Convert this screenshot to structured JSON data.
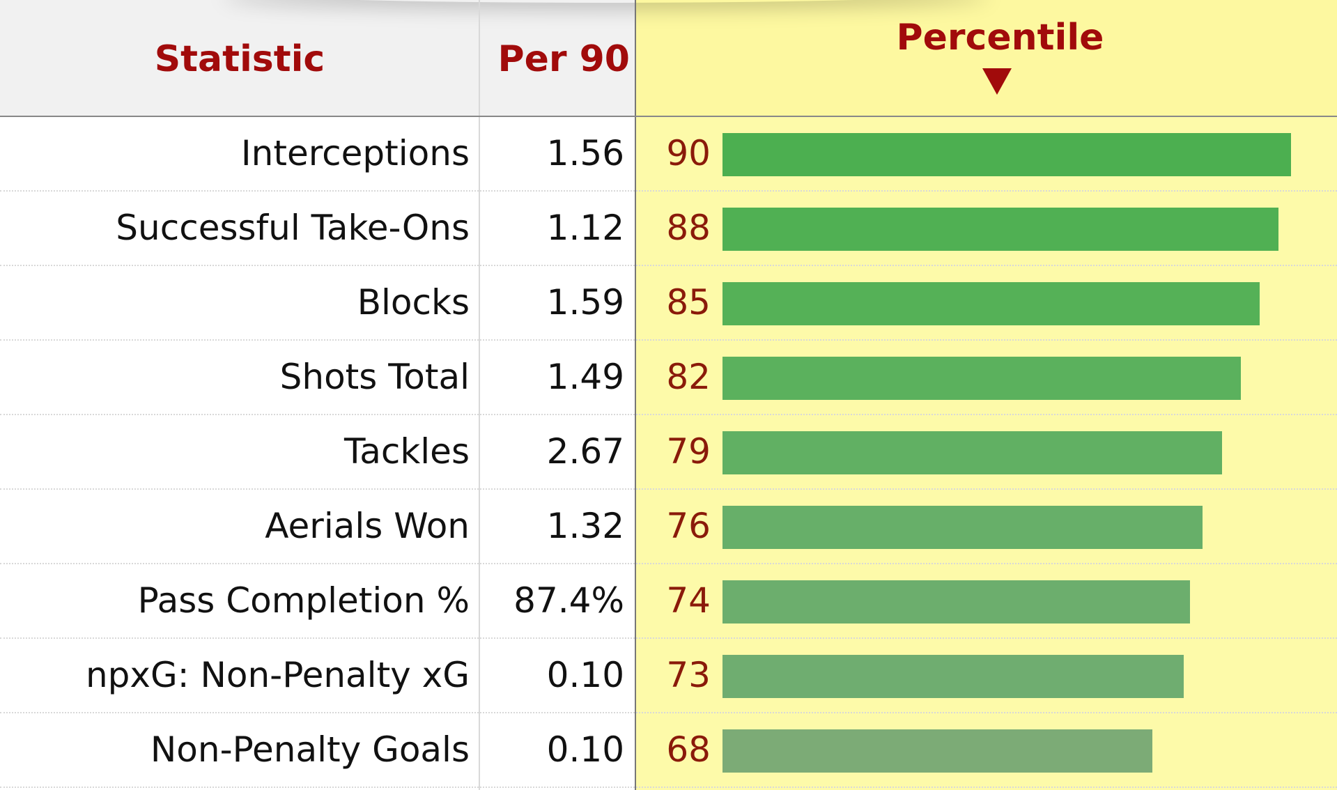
{
  "header": {
    "statistic": "Statistic",
    "per90": "Per 90",
    "percentile": "Percentile"
  },
  "rows": [
    {
      "stat": "Interceptions",
      "per90": "1.56",
      "percentile": "90",
      "bar_color": "#4caf50"
    },
    {
      "stat": "Successful Take-Ons",
      "per90": "1.12",
      "percentile": "88",
      "bar_color": "#50b053"
    },
    {
      "stat": "Blocks",
      "per90": "1.59",
      "percentile": "85",
      "bar_color": "#55b157"
    },
    {
      "stat": "Shots Total",
      "per90": "1.49",
      "percentile": "82",
      "bar_color": "#5bb15d"
    },
    {
      "stat": "Tackles",
      "per90": "2.67",
      "percentile": "79",
      "bar_color": "#61b063"
    },
    {
      "stat": "Aerials Won",
      "per90": "1.32",
      "percentile": "76",
      "bar_color": "#67af69"
    },
    {
      "stat": "Pass Completion %",
      "per90": "87.4%",
      "percentile": "74",
      "bar_color": "#6cae6d"
    },
    {
      "stat": "npxG: Non-Penalty xG",
      "per90": "0.10",
      "percentile": "73",
      "bar_color": "#6fad70"
    },
    {
      "stat": "Non-Penalty Goals",
      "per90": "0.10",
      "percentile": "68",
      "bar_color": "#7cab76"
    }
  ]
}
